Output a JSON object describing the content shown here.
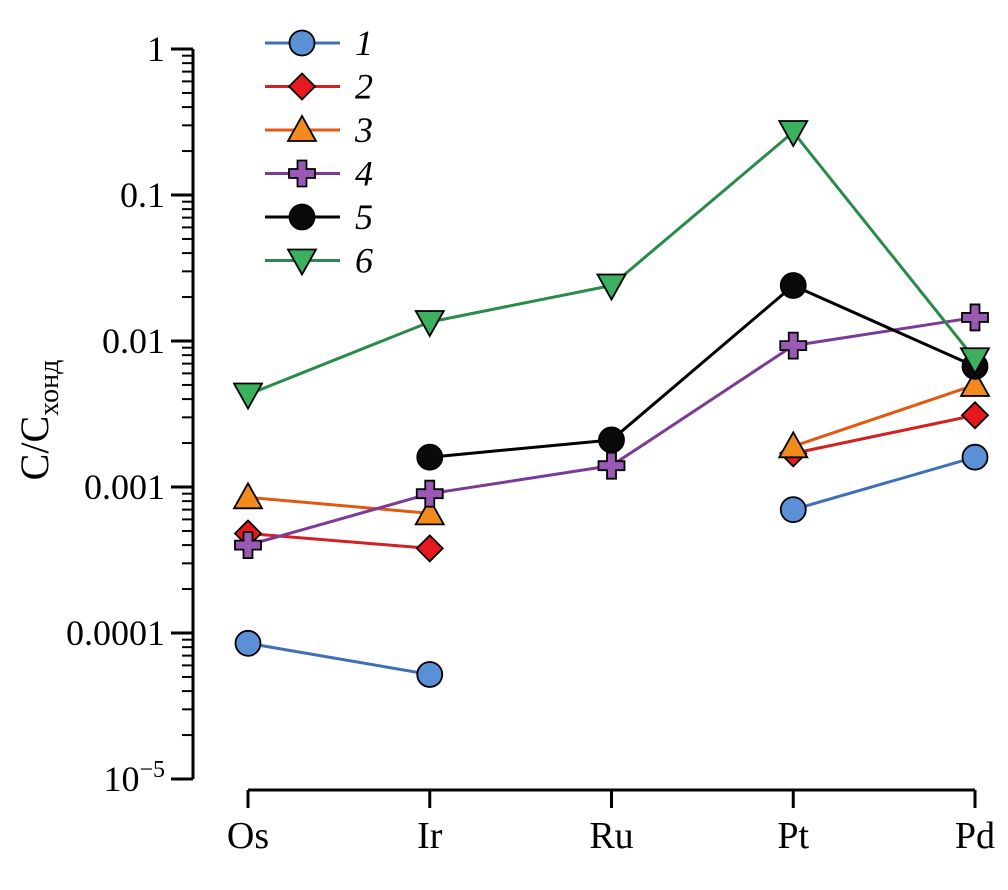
{
  "chart_data": {
    "type": "line",
    "ylabel": "C/C",
    "ylabel_sub": "хонд",
    "yscale": "log",
    "ylim": [
      1e-05,
      1
    ],
    "categories": [
      "Os",
      "Ir",
      "Ru",
      "Pt",
      "Pd"
    ],
    "yticks": [
      {
        "value": 1,
        "label": "1"
      },
      {
        "value": 0.1,
        "label": "0.1"
      },
      {
        "value": 0.01,
        "label": "0.01"
      },
      {
        "value": 0.001,
        "label": "0.001"
      },
      {
        "value": 0.0001,
        "label": "0.0001"
      },
      {
        "value": 1e-05,
        "base": "10",
        "exp": "−5"
      }
    ],
    "legend_position": "top-left",
    "series": [
      {
        "name": "1",
        "color": "#3f6fb8",
        "fill": "#5b8fd6",
        "marker": "circle",
        "values": [
          8.5e-05,
          5.2e-05,
          null,
          0.0007,
          0.0016
        ]
      },
      {
        "name": "2",
        "color": "#d42020",
        "fill": "#e8191e",
        "marker": "diamond",
        "values": [
          0.00048,
          0.00038,
          null,
          0.0017,
          0.0031
        ]
      },
      {
        "name": "3",
        "color": "#e05a10",
        "fill": "#f28a1e",
        "marker": "triangle-up",
        "values": [
          0.00085,
          0.00066,
          null,
          0.0019,
          0.005
        ]
      },
      {
        "name": "4",
        "color": "#7b3a96",
        "fill": "#9b59b6",
        "marker": "plus",
        "values": [
          0.0004,
          0.0009,
          0.0014,
          0.0093,
          0.0145
        ]
      },
      {
        "name": "5",
        "color": "#000000",
        "fill": "#0a0a0a",
        "marker": "circle",
        "values": [
          null,
          0.0016,
          0.0021,
          0.024,
          0.0067
        ]
      },
      {
        "name": "6",
        "color": "#2a8a4a",
        "fill": "#3bb05e",
        "marker": "triangle-down",
        "values": [
          0.0043,
          0.0135,
          0.024,
          0.27,
          0.0075
        ]
      }
    ]
  }
}
